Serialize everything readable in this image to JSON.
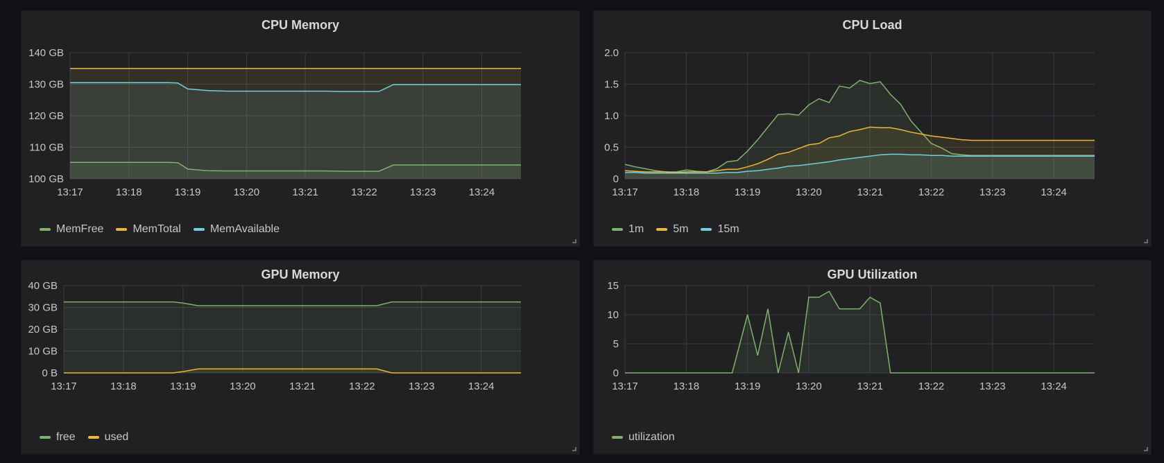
{
  "panels": [
    {
      "id": "cpu-memory",
      "title": "CPU Memory",
      "chart_data": {
        "type": "area",
        "title": "CPU Memory",
        "unit": "GB",
        "x": [
          "13:17",
          "13:17:20",
          "13:17:40",
          "13:18",
          "13:18:20",
          "13:18:40",
          "13:18:50",
          "13:19",
          "13:19:20",
          "13:19:40",
          "13:20",
          "13:20:20",
          "13:20:40",
          "13:21",
          "13:21:20",
          "13:21:40",
          "13:22",
          "13:22:15",
          "13:22:30",
          "13:22:50",
          "13:23",
          "13:23:20",
          "13:23:40",
          "13:24",
          "13:24:20",
          "13:24:40"
        ],
        "x_ticks": [
          "13:17",
          "13:18",
          "13:19",
          "13:20",
          "13:21",
          "13:22",
          "13:23",
          "13:24"
        ],
        "y_ticks": [
          "100 GB",
          "110 GB",
          "120 GB",
          "130 GB",
          "140 GB"
        ],
        "ylim": [
          100,
          140
        ],
        "series": [
          {
            "name": "MemTotal",
            "color": "#eab839",
            "values": [
              135,
              135,
              135,
              135,
              135,
              135,
              135,
              135,
              135,
              135,
              135,
              135,
              135,
              135,
              135,
              135,
              135,
              135,
              135,
              135,
              135,
              135,
              135,
              135,
              135,
              135
            ]
          },
          {
            "name": "MemAvailable",
            "color": "#6ed0e0",
            "values": [
              130.5,
              130.5,
              130.5,
              130.5,
              130.5,
              130.5,
              130.4,
              128.5,
              128,
              127.8,
              127.8,
              127.8,
              127.8,
              127.8,
              127.8,
              127.7,
              127.7,
              127.7,
              129.9,
              129.9,
              129.9,
              129.9,
              129.9,
              129.9,
              129.9,
              129.9
            ]
          },
          {
            "name": "MemFree",
            "color": "#7eb26d",
            "values": [
              105.2,
              105.2,
              105.2,
              105.2,
              105.2,
              105.2,
              105.1,
              103.1,
              102.6,
              102.5,
              102.5,
              102.5,
              102.5,
              102.5,
              102.5,
              102.4,
              102.4,
              102.4,
              104.4,
              104.4,
              104.4,
              104.4,
              104.4,
              104.4,
              104.4,
              104.4
            ]
          }
        ],
        "legend": [
          "MemFree",
          "MemTotal",
          "MemAvailable"
        ]
      }
    },
    {
      "id": "cpu-load",
      "title": "CPU Load",
      "chart_data": {
        "type": "area",
        "title": "CPU Load",
        "x": [
          "13:17",
          "13:17:10",
          "13:17:20",
          "13:17:30",
          "13:17:40",
          "13:17:50",
          "13:18",
          "13:18:10",
          "13:18:20",
          "13:18:30",
          "13:18:40",
          "13:18:50",
          "13:19",
          "13:19:10",
          "13:19:20",
          "13:19:30",
          "13:19:40",
          "13:19:50",
          "13:20",
          "13:20:10",
          "13:20:20",
          "13:20:30",
          "13:20:40",
          "13:20:50",
          "13:21",
          "13:21:10",
          "13:21:20",
          "13:21:30",
          "13:21:40",
          "13:21:50",
          "13:22",
          "13:22:10",
          "13:22:20",
          "13:22:30",
          "13:22:40",
          "13:22:50",
          "13:23",
          "13:23:10",
          "13:23:20",
          "13:23:30",
          "13:23:40",
          "13:23:50",
          "13:24",
          "13:24:10",
          "13:24:20",
          "13:24:30",
          "13:24:40"
        ],
        "x_ticks": [
          "13:17",
          "13:18",
          "13:19",
          "13:20",
          "13:21",
          "13:22",
          "13:23",
          "13:24"
        ],
        "y_ticks": [
          "0",
          "0.5",
          "1.0",
          "1.5",
          "2.0"
        ],
        "ylim": [
          0,
          2
        ],
        "series": [
          {
            "name": "1m",
            "color": "#7eb26d",
            "values": [
              0.23,
              0.19,
              0.16,
              0.13,
              0.11,
              0.11,
              0.14,
              0.12,
              0.11,
              0.16,
              0.27,
              0.29,
              0.44,
              0.62,
              0.82,
              1.02,
              1.03,
              1.01,
              1.17,
              1.27,
              1.21,
              1.47,
              1.44,
              1.56,
              1.51,
              1.54,
              1.34,
              1.18,
              0.92,
              0.74,
              0.56,
              0.49,
              0.4,
              0.38,
              0.37,
              0.37,
              0.37,
              0.37,
              0.37,
              0.37,
              0.37,
              0.37,
              0.37,
              0.37,
              0.37,
              0.37,
              0.37
            ]
          },
          {
            "name": "5m",
            "color": "#eab839",
            "values": [
              0.13,
              0.12,
              0.11,
              0.11,
              0.11,
              0.1,
              0.11,
              0.11,
              0.11,
              0.13,
              0.15,
              0.15,
              0.19,
              0.24,
              0.31,
              0.39,
              0.42,
              0.48,
              0.54,
              0.56,
              0.65,
              0.68,
              0.75,
              0.78,
              0.82,
              0.81,
              0.81,
              0.78,
              0.74,
              0.71,
              0.68,
              0.66,
              0.64,
              0.62,
              0.61,
              0.61,
              0.61,
              0.61,
              0.61,
              0.61,
              0.61,
              0.61,
              0.61,
              0.61,
              0.61,
              0.61,
              0.61
            ]
          },
          {
            "name": "15m",
            "color": "#6ed0e0",
            "values": [
              0.1,
              0.1,
              0.09,
              0.09,
              0.09,
              0.09,
              0.09,
              0.09,
              0.09,
              0.09,
              0.1,
              0.1,
              0.12,
              0.13,
              0.15,
              0.17,
              0.2,
              0.21,
              0.23,
              0.25,
              0.27,
              0.3,
              0.32,
              0.34,
              0.36,
              0.38,
              0.39,
              0.39,
              0.38,
              0.38,
              0.37,
              0.37,
              0.36,
              0.36,
              0.36,
              0.36,
              0.36,
              0.36,
              0.36,
              0.36,
              0.36,
              0.36,
              0.36,
              0.36,
              0.36,
              0.36,
              0.36
            ]
          }
        ],
        "legend": [
          "1m",
          "5m",
          "15m"
        ]
      }
    },
    {
      "id": "gpu-memory",
      "title": "GPU Memory",
      "chart_data": {
        "type": "area",
        "title": "GPU Memory",
        "unit": "GB",
        "x": [
          "13:17",
          "13:17:30",
          "13:18",
          "13:18:30",
          "13:18:50",
          "13:19",
          "13:19:15",
          "13:19:40",
          "13:20",
          "13:20:30",
          "13:21",
          "13:21:30",
          "13:22",
          "13:22:15",
          "13:22:30",
          "13:23",
          "13:23:30",
          "13:24",
          "13:24:40"
        ],
        "x_ticks": [
          "13:17",
          "13:18",
          "13:19",
          "13:20",
          "13:21",
          "13:22",
          "13:23",
          "13:24"
        ],
        "y_ticks": [
          "0 B",
          "10 GB",
          "20 GB",
          "30 GB",
          "40 GB"
        ],
        "ylim": [
          0,
          40
        ],
        "series": [
          {
            "name": "free",
            "color": "#7eb26d",
            "values": [
              32.5,
              32.5,
              32.5,
              32.5,
              32.5,
              32,
              30.8,
              30.8,
              30.8,
              30.8,
              30.8,
              30.8,
              30.8,
              30.8,
              32.5,
              32.5,
              32.5,
              32.5,
              32.5
            ]
          },
          {
            "name": "used",
            "color": "#eab839",
            "values": [
              0,
              0,
              0,
              0,
              0,
              0.6,
              1.8,
              1.8,
              1.8,
              1.8,
              1.8,
              1.8,
              1.8,
              1.8,
              0,
              0,
              0,
              0,
              0
            ]
          }
        ],
        "legend": [
          "free",
          "used"
        ]
      }
    },
    {
      "id": "gpu-utilization",
      "title": "GPU Utilization",
      "chart_data": {
        "type": "area",
        "title": "GPU Utilization",
        "x": [
          "13:17",
          "13:17:30",
          "13:18",
          "13:18:30",
          "13:18:45",
          "13:19",
          "13:19:10",
          "13:19:20",
          "13:19:30",
          "13:19:40",
          "13:19:50",
          "13:20",
          "13:20:10",
          "13:20:20",
          "13:20:30",
          "13:20:40",
          "13:20:50",
          "13:21",
          "13:21:10",
          "13:21:20",
          "13:21:30",
          "13:21:40",
          "13:21:50",
          "13:22",
          "13:22:10",
          "13:22:20",
          "13:22:30",
          "13:23",
          "13:23:30",
          "13:24",
          "13:24:40"
        ],
        "x_ticks": [
          "13:17",
          "13:18",
          "13:19",
          "13:20",
          "13:21",
          "13:22",
          "13:23",
          "13:24"
        ],
        "y_ticks": [
          "0",
          "5",
          "10",
          "15"
        ],
        "ylim": [
          0,
          15
        ],
        "series": [
          {
            "name": "utilization",
            "color": "#7eb26d",
            "values": [
              0,
              0,
              0,
              0,
              0,
              10,
              3,
              11,
              0,
              7,
              0,
              13,
              13,
              14,
              11,
              11,
              11,
              13,
              12,
              0,
              0,
              0,
              0,
              0,
              0,
              0,
              0,
              0,
              0,
              0,
              0
            ]
          }
        ],
        "legend": [
          "utilization"
        ]
      }
    }
  ]
}
